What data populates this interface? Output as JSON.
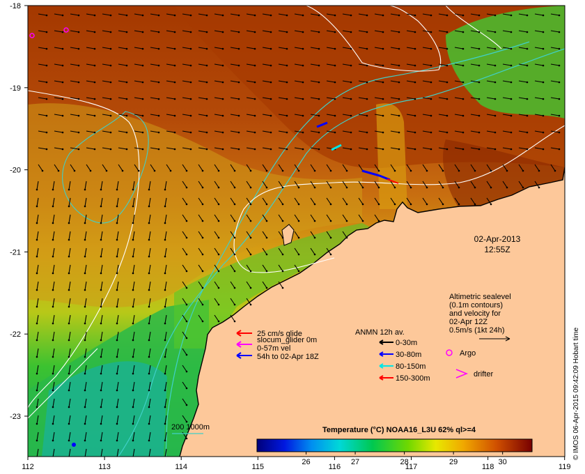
{
  "axes": {
    "lon_ticks": [
      "112",
      "113",
      "114",
      "115",
      "116",
      "117",
      "118",
      "119"
    ],
    "lat_ticks": [
      "-18",
      "-19",
      "-20",
      "-21",
      "-22",
      "-23"
    ]
  },
  "timestamp": {
    "date": "02-Apr-2013",
    "time": "12:55Z"
  },
  "glider_legend": {
    "line1": "25 cm/s glide",
    "line2": "slocum_glider 0m",
    "line3": "0-57m vel",
    "line4": "54h to 02-Apr 18Z"
  },
  "anmn_legend": {
    "title": "ANMN 12h av.",
    "items": [
      {
        "label": "0-30m",
        "color": "#000000"
      },
      {
        "label": "30-80m",
        "color": "#0000ff"
      },
      {
        "label": "80-150m",
        "color": "#00e5e5"
      },
      {
        "label": "150-300m",
        "color": "#ff0000"
      }
    ]
  },
  "altimetry_note": {
    "line1": "Altimetric sealevel",
    "line2": "(0.1m contours)",
    "line3": "and velocity for",
    "line4": "02-Apr 12Z",
    "line5": "0.5m/s (1kt 24h)"
  },
  "markers": {
    "argo": "Argo",
    "drifter": "drifter"
  },
  "isobath": {
    "label": "200  1000m"
  },
  "colorbar": {
    "title": "Temperature (°C) NOAA16_L3U 62% ql>=4",
    "ticks": [
      "26",
      "27",
      "28",
      "29",
      "30"
    ],
    "min": 25,
    "max": 30.6
  },
  "credit": "© IMOS 06-Apr-2015 09:42:09 Hobart time",
  "colors": {
    "land": "#fdc89a",
    "warm": "#a83a00",
    "cool": "#1fc23c",
    "contour": "#ffffff",
    "isobath": "#40d0c8",
    "argo": "#ff00ff"
  }
}
